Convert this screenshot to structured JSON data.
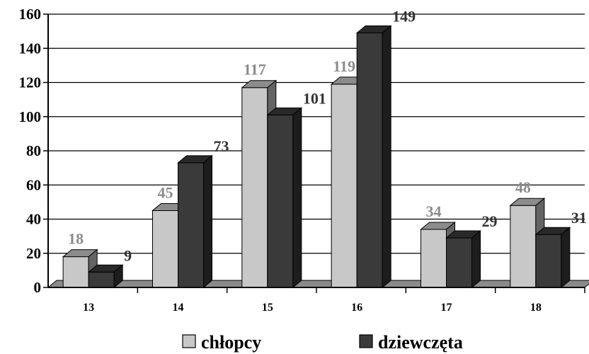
{
  "chart_data": {
    "type": "bar",
    "categories": [
      "13",
      "14",
      "15",
      "16",
      "17",
      "18"
    ],
    "series": [
      {
        "name": "chłopcy",
        "values": [
          18,
          45,
          117,
          119,
          34,
          48
        ],
        "color": "#c8c8c8",
        "label_color": "#8c8c8c"
      },
      {
        "name": "dziewczęta",
        "values": [
          9,
          73,
          101,
          149,
          29,
          31
        ],
        "color": "#3a3a3a",
        "label_color": "#333333"
      }
    ],
    "ylim": [
      0,
      160
    ],
    "y_ticks": [
      "0",
      "20",
      "40",
      "60",
      "80",
      "100",
      "120",
      "140",
      "160"
    ],
    "grid": true,
    "legend_position": "bottom",
    "style": "3d-clustered-bar"
  }
}
